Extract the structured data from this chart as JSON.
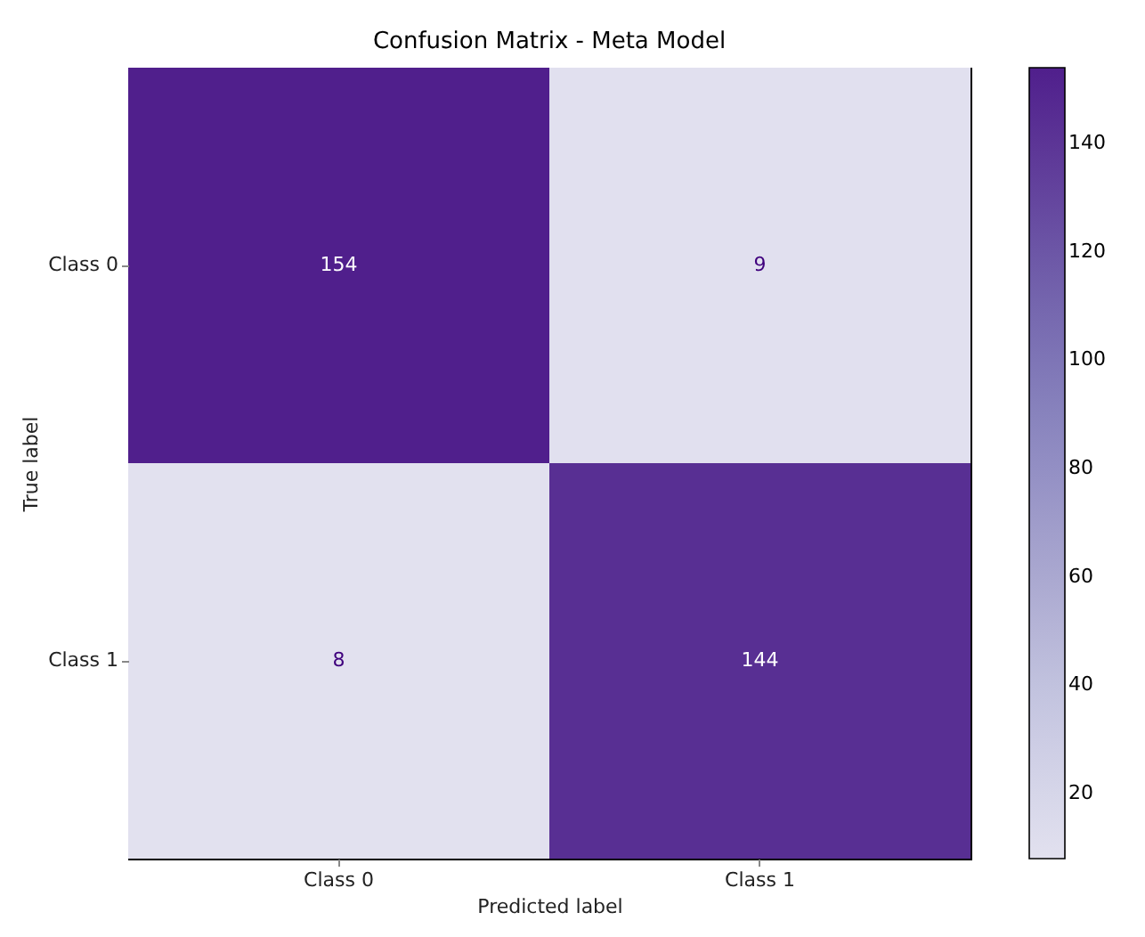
{
  "chart_data": {
    "type": "heatmap",
    "title": "Confusion Matrix - Meta Model",
    "xlabel": "Predicted label",
    "ylabel": "True label",
    "categories": [
      "Class 0",
      "Class 1"
    ],
    "y_categories": [
      "Class 0",
      "Class 1"
    ],
    "cells": [
      [
        154,
        9
      ],
      [
        8,
        144
      ]
    ],
    "clim": [
      8,
      154
    ],
    "cticks": [
      20,
      40,
      60,
      80,
      100,
      120,
      140
    ],
    "data_labels": true
  }
}
